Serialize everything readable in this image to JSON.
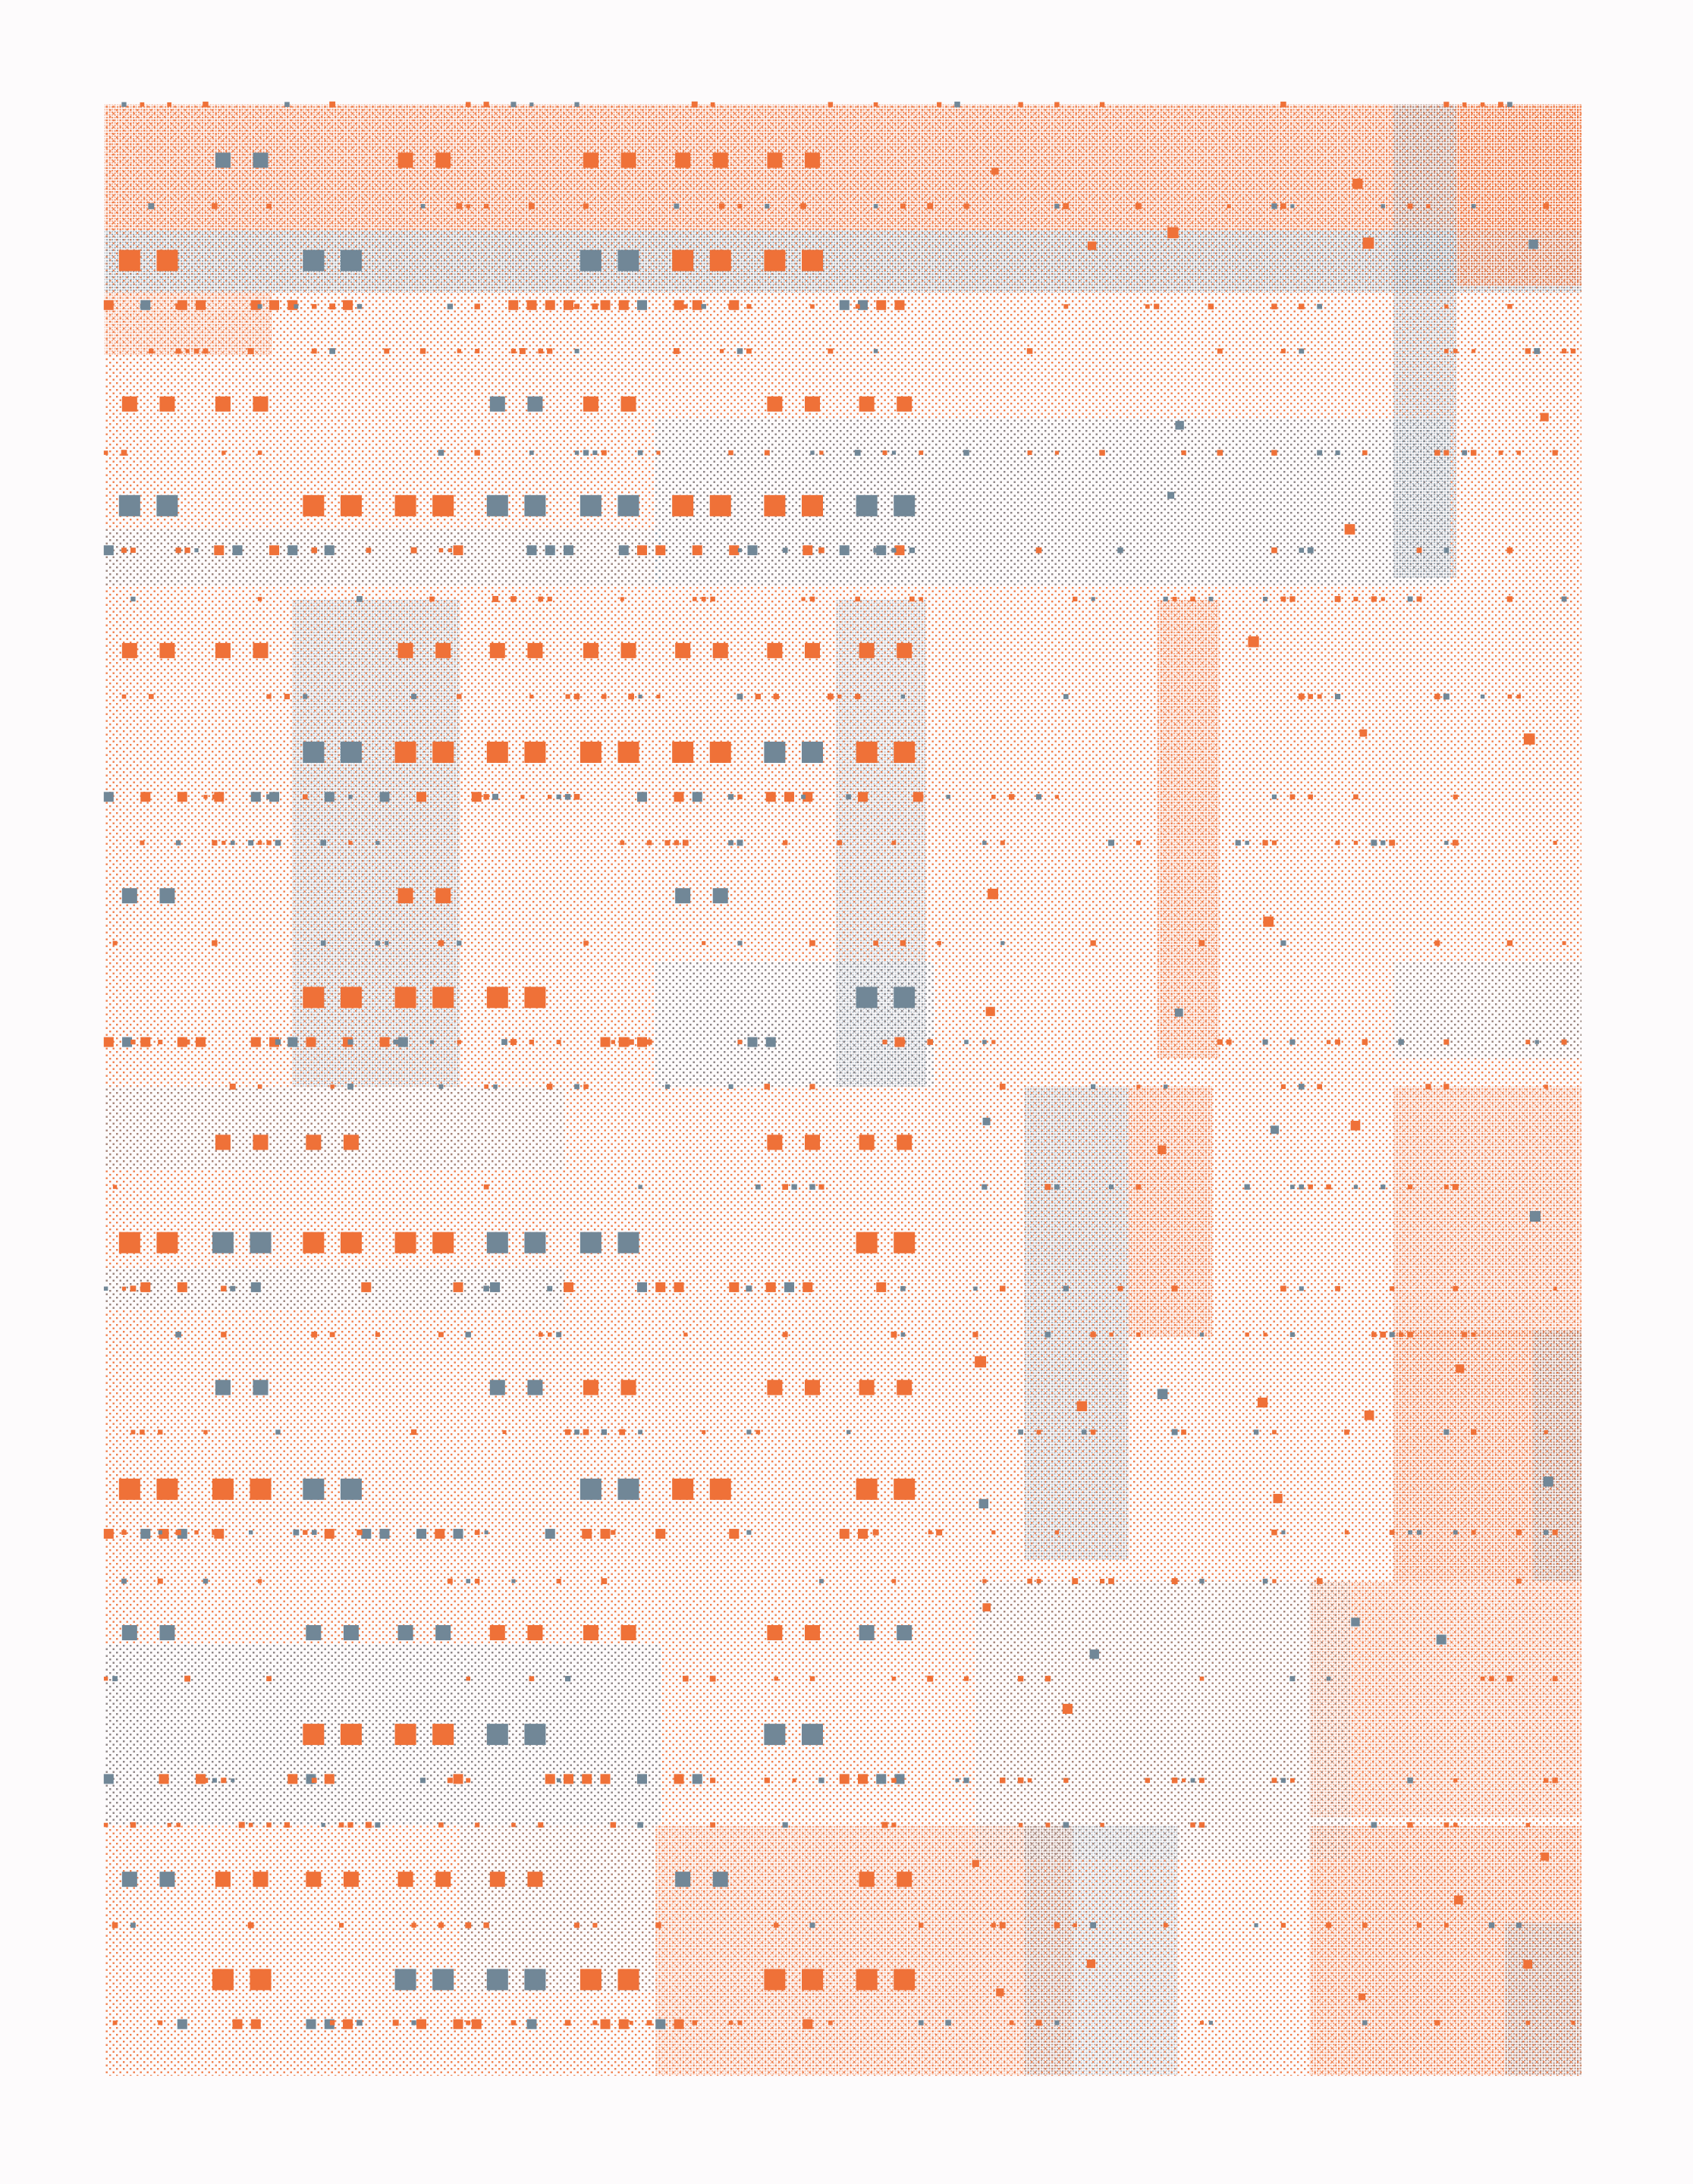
{
  "palette": {
    "orange": "#ef7138",
    "slate": "#718797",
    "paper": "#fdfbfc"
  }
}
